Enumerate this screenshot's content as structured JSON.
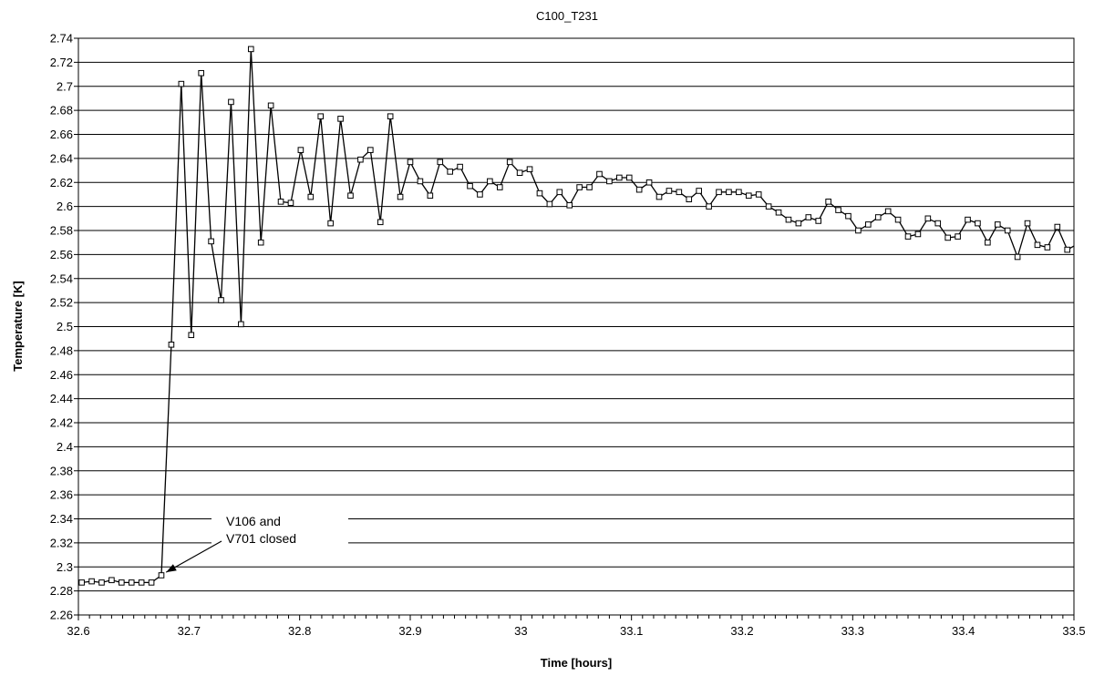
{
  "chart_data": {
    "type": "line",
    "title": "C100_T231",
    "xlabel": "Time [hours]",
    "ylabel": "Temperature [K]",
    "xlim": [
      32.6,
      33.5
    ],
    "ylim": [
      2.26,
      2.74
    ],
    "x_ticks": [
      "32.6",
      "32.7",
      "32.8",
      "32.9",
      "33",
      "33.1",
      "33.2",
      "33.3",
      "33.4",
      "33.5"
    ],
    "y_ticks": [
      "2.26",
      "2.28",
      "2.3",
      "2.32",
      "2.34",
      "2.36",
      "2.38",
      "2.4",
      "2.42",
      "2.44",
      "2.46",
      "2.48",
      "2.5",
      "2.52",
      "2.54",
      "2.56",
      "2.58",
      "2.6",
      "2.62",
      "2.64",
      "2.66",
      "2.68",
      "2.7",
      "2.72",
      "2.74"
    ],
    "grid": "horizontal",
    "marker": "square",
    "series": [
      {
        "color": "#000000",
        "x": [
          32.603,
          32.612,
          32.621,
          32.63,
          32.639,
          32.648,
          32.657,
          32.666,
          32.675,
          32.684,
          32.693,
          32.702,
          32.711,
          32.72,
          32.729,
          32.738,
          32.747,
          32.756,
          32.765,
          32.774,
          32.783,
          32.792,
          32.801,
          32.81,
          32.819,
          32.828,
          32.837,
          32.846,
          32.855,
          32.864,
          32.873,
          32.882,
          32.891,
          32.9,
          32.909,
          32.918,
          32.927,
          32.936,
          32.945,
          32.954,
          32.963,
          32.972,
          32.981,
          32.99,
          32.999,
          33.008,
          33.017,
          33.026,
          33.035,
          33.044,
          33.053,
          33.062,
          33.071,
          33.08,
          33.089,
          33.098,
          33.107,
          33.116,
          33.125,
          33.134,
          33.143,
          33.152,
          33.161,
          33.17,
          33.179,
          33.188,
          33.197,
          33.206,
          33.215,
          33.224,
          33.233,
          33.242,
          33.251,
          33.26,
          33.269,
          33.278,
          33.287,
          33.296,
          33.305,
          33.314,
          33.323,
          33.332,
          33.341,
          33.35,
          33.359,
          33.368,
          33.377,
          33.386,
          33.395,
          33.404,
          33.413,
          33.422,
          33.431,
          33.44,
          33.449,
          33.458,
          33.467,
          33.476,
          33.485,
          33.494,
          33.5
        ],
        "y": [
          2.287,
          2.288,
          2.287,
          2.289,
          2.287,
          2.287,
          2.287,
          2.287,
          2.293,
          2.485,
          2.702,
          2.493,
          2.711,
          2.571,
          2.522,
          2.687,
          2.502,
          2.731,
          2.57,
          2.684,
          2.604,
          2.603,
          2.647,
          2.608,
          2.675,
          2.586,
          2.673,
          2.609,
          2.639,
          2.647,
          2.587,
          2.675,
          2.608,
          2.637,
          2.621,
          2.609,
          2.637,
          2.629,
          2.633,
          2.617,
          2.61,
          2.621,
          2.616,
          2.637,
          2.628,
          2.631,
          2.611,
          2.602,
          2.612,
          2.601,
          2.616,
          2.616,
          2.627,
          2.621,
          2.624,
          2.624,
          2.614,
          2.62,
          2.608,
          2.613,
          2.612,
          2.606,
          2.613,
          2.6,
          2.612,
          2.612,
          2.612,
          2.609,
          2.61,
          2.6,
          2.595,
          2.589,
          2.586,
          2.591,
          2.588,
          2.604,
          2.597,
          2.592,
          2.58,
          2.585,
          2.591,
          2.596,
          2.589,
          2.575,
          2.577,
          2.59,
          2.586,
          2.574,
          2.575,
          2.589,
          2.586,
          2.57,
          2.585,
          2.58,
          2.558,
          2.586,
          2.568,
          2.566,
          2.583,
          2.564,
          2.567
        ]
      }
    ],
    "annotation": {
      "lines": [
        "V106 and",
        "V701 closed"
      ],
      "points_to": {
        "x": 32.676,
        "y": 2.294
      }
    }
  }
}
